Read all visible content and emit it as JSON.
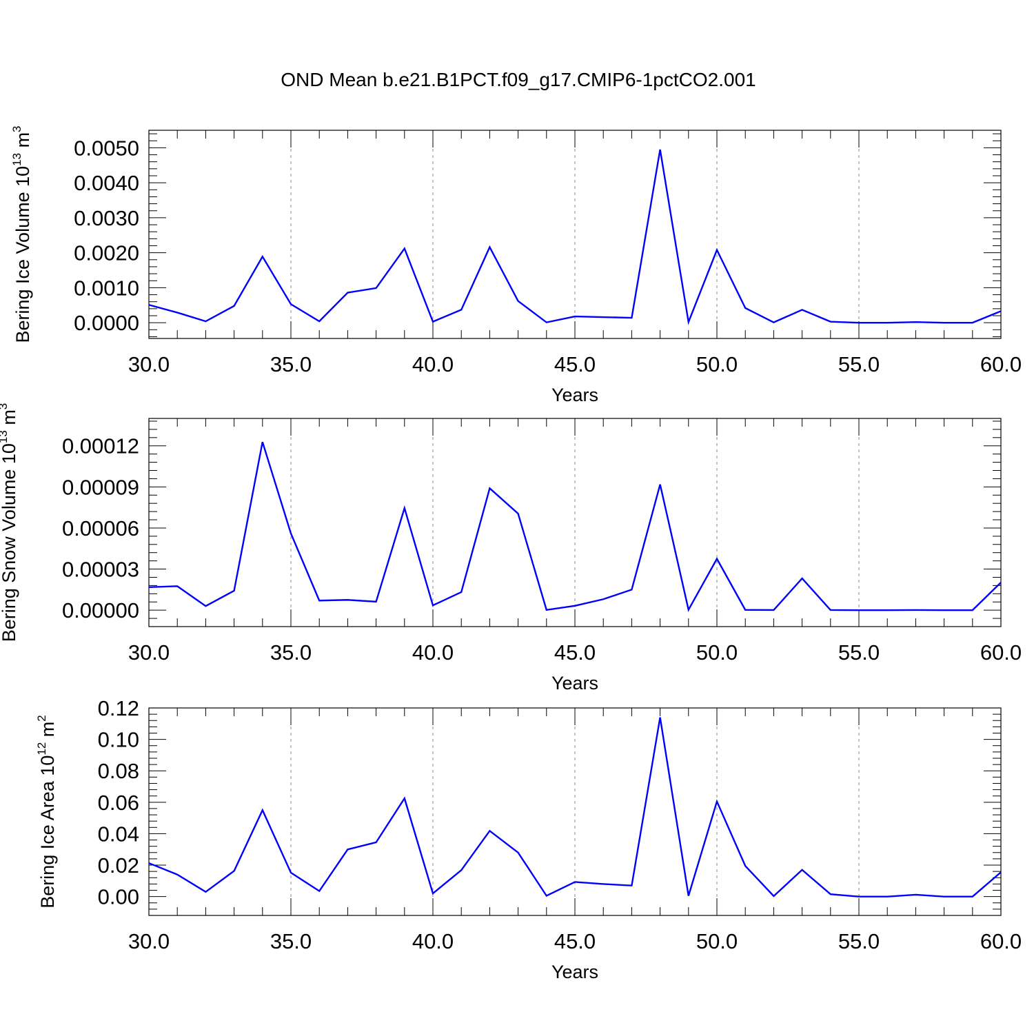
{
  "figure": {
    "title": "OND Mean b.e21.B1PCT.f09_g17.CMIP6-1pctCO2.001"
  },
  "colors": {
    "series": "#0000ff",
    "axis": "#000000",
    "grid": "#888888"
  },
  "chart_data": [
    {
      "type": "line",
      "ylabel": "Bering Ice Volume 10^13 m^3",
      "ylabel_parts": {
        "base": "Bering Ice Volume 10",
        "exp": "13",
        "unit": "m",
        "unit_exp": "3"
      },
      "xlabel": "Years",
      "xlim": [
        30,
        60
      ],
      "ylim": [
        -0.00045,
        0.0055
      ],
      "xticks": [
        30,
        35,
        40,
        45,
        50,
        55,
        60
      ],
      "xtick_labels": [
        "30.0",
        "35.0",
        "40.0",
        "45.0",
        "50.0",
        "55.0",
        "60.0"
      ],
      "yticks": [
        0,
        0.001,
        0.002,
        0.003,
        0.004,
        0.005
      ],
      "ytick_labels": [
        "0.0000",
        "0.0010",
        "0.0020",
        "0.0030",
        "0.0040",
        "0.0050"
      ],
      "grid": "vertical dashed",
      "x": [
        30,
        31,
        32,
        33,
        34,
        35,
        36,
        37,
        38,
        39,
        40,
        41,
        42,
        43,
        44,
        45,
        46,
        47,
        48,
        49,
        50,
        51,
        52,
        53,
        54,
        55,
        56,
        57,
        58,
        59,
        60
      ],
      "series": [
        {
          "values": [
            0.00051,
            0.00029,
            4e-05,
            0.00048,
            0.00189,
            0.00053,
            4e-05,
            0.00086,
            0.00099,
            0.00212,
            3e-05,
            0.00037,
            0.00216,
            0.00062,
            1e-05,
            0.00018,
            0.00016,
            0.00014,
            0.00495,
            2e-05,
            0.00208,
            0.00042,
            1e-05,
            0.00037,
            3e-05,
            0.0,
            0.0,
            2e-05,
            0.0,
            0.0,
            0.00033
          ]
        }
      ]
    },
    {
      "type": "line",
      "ylabel": "Bering Snow Volume 10^13 m^3",
      "ylabel_parts": {
        "base": "Bering Snow Volume 10",
        "exp": "13",
        "unit": "m",
        "unit_exp": "3"
      },
      "xlabel": "Years",
      "xlim": [
        30,
        60
      ],
      "ylim": [
        -1.2e-05,
        0.00014
      ],
      "xticks": [
        30,
        35,
        40,
        45,
        50,
        55,
        60
      ],
      "xtick_labels": [
        "30.0",
        "35.0",
        "40.0",
        "45.0",
        "50.0",
        "55.0",
        "60.0"
      ],
      "yticks": [
        0,
        3e-05,
        6e-05,
        9e-05,
        0.00012
      ],
      "ytick_labels": [
        "0.00000",
        "0.00003",
        "0.00006",
        "0.00009",
        "0.00012"
      ],
      "grid": "vertical dashed",
      "x": [
        30,
        31,
        32,
        33,
        34,
        35,
        36,
        37,
        38,
        39,
        40,
        41,
        42,
        43,
        44,
        45,
        46,
        47,
        48,
        49,
        50,
        51,
        52,
        53,
        54,
        55,
        56,
        57,
        58,
        59,
        60
      ],
      "series": [
        {
          "values": [
            1.68e-05,
            1.75e-05,
            3e-06,
            1.42e-05,
            0.0001228,
            5.6e-05,
            7e-06,
            7.5e-06,
            6.2e-06,
            7.45e-05,
            3.5e-06,
            1.32e-05,
            8.9e-05,
            7.05e-05,
            2e-07,
            3.2e-06,
            8e-06,
            1.5e-05,
            9.18e-05,
            3e-07,
            3.75e-05,
            2e-07,
            1e-07,
            2.32e-05,
            1e-07,
            0.0,
            0.0,
            1e-07,
            0.0,
            0.0,
            2.02e-05
          ]
        }
      ]
    },
    {
      "type": "line",
      "ylabel": "Bering Ice Area 10^12 m^2",
      "ylabel_parts": {
        "base": "Bering Ice Area 10",
        "exp": "12",
        "unit": "m",
        "unit_exp": "2"
      },
      "xlabel": "Years",
      "xlim": [
        30,
        60
      ],
      "ylim": [
        -0.012,
        0.12
      ],
      "xticks": [
        30,
        35,
        40,
        45,
        50,
        55,
        60
      ],
      "xtick_labels": [
        "30.0",
        "35.0",
        "40.0",
        "45.0",
        "50.0",
        "55.0",
        "60.0"
      ],
      "yticks": [
        0,
        0.02,
        0.04,
        0.06,
        0.08,
        0.1,
        0.12
      ],
      "ytick_labels": [
        "0.00",
        "0.02",
        "0.04",
        "0.06",
        "0.08",
        "0.10",
        "0.12"
      ],
      "grid": "vertical dashed",
      "x": [
        30,
        31,
        32,
        33,
        34,
        35,
        36,
        37,
        38,
        39,
        40,
        41,
        42,
        43,
        44,
        45,
        46,
        47,
        48,
        49,
        50,
        51,
        52,
        53,
        54,
        55,
        56,
        57,
        58,
        59,
        60
      ],
      "series": [
        {
          "values": [
            0.0213,
            0.014,
            0.003,
            0.0163,
            0.055,
            0.0152,
            0.0035,
            0.03,
            0.0345,
            0.0625,
            0.002,
            0.0168,
            0.0418,
            0.028,
            0.0005,
            0.0093,
            0.008,
            0.007,
            0.114,
            0.0005,
            0.0605,
            0.0195,
            0.0003,
            0.017,
            0.0015,
            0.0,
            0.0,
            0.0012,
            0.0,
            0.0,
            0.0155
          ]
        }
      ]
    }
  ]
}
